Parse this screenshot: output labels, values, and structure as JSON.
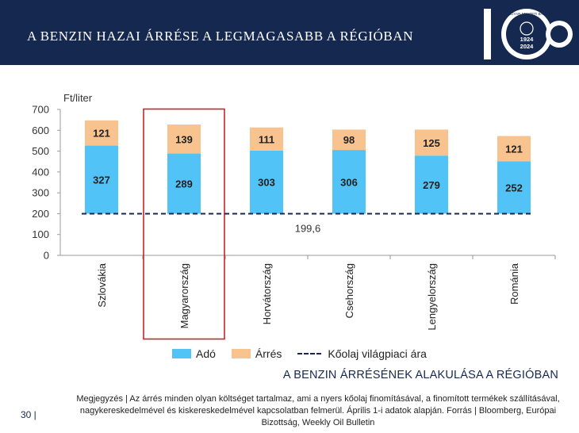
{
  "header": {
    "title": "A BENZIN HAZAI ÁRRÉSE A LEGMAGASABB A RÉGIÓBAN"
  },
  "logo": {
    "years_top": "1924",
    "years_bottom": "2024",
    "ring_text": "MAGYAR NEMZETI BANK"
  },
  "chart_data": {
    "type": "bar",
    "stacked": true,
    "ylabel": "Ft/liter",
    "ylim": [
      0,
      700
    ],
    "yticks": [
      0,
      100,
      200,
      300,
      400,
      500,
      600,
      700
    ],
    "categories": [
      "Szlovákia",
      "Magyarország",
      "Horvátország",
      "Csehország",
      "Lengyelország",
      "Románia"
    ],
    "series": [
      {
        "name": "Adó",
        "values": [
          327,
          289,
          303,
          306,
          279,
          252
        ],
        "color": "#52c3f6",
        "base": 199.6
      },
      {
        "name": "Árrés",
        "values": [
          121,
          139,
          111,
          98,
          125,
          121
        ],
        "color": "#f9c390"
      }
    ],
    "reference_line": {
      "name": "Kőolaj világpiaci ára",
      "value": 199.6,
      "label": "199,6",
      "color": "#1a2550"
    },
    "highlight_category": "Magyarország",
    "highlight_color": "#c8242d",
    "grid": false,
    "legend_position": "bottom"
  },
  "subtitle": "A BENZIN ÁRRÉSÉNEK ALAKULÁSA A RÉGIÓBAN",
  "note": "Megjegyzés | Az árrés minden olyan költséget tartalmaz, ami a nyers kőolaj finomításával, a finomított termékek szállításával, nagykereskedelmével és kiskereskedelmével kapcsolatban felmerül. Április 1-i adatok alapján. Forrás | Bloomberg, Európai Bizottság, Weekly Oil Bulletin",
  "page_number": "30 |"
}
